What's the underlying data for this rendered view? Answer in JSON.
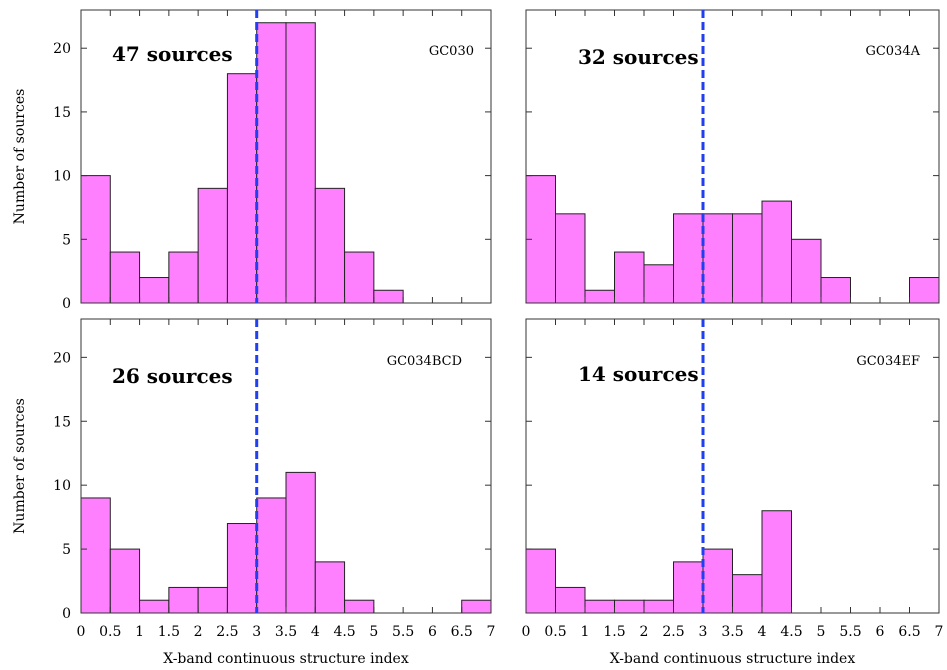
{
  "chart_data": [
    {
      "type": "bar",
      "panel": "GC030",
      "annotation": "47 sources",
      "bin_edges": [
        0,
        0.5,
        1,
        1.5,
        2,
        2.5,
        3,
        3.5,
        4,
        4.5,
        5,
        5.5,
        6,
        6.5,
        7
      ],
      "values": [
        10,
        4,
        2,
        4,
        9,
        18,
        22,
        22,
        9,
        4,
        1,
        0,
        0,
        0
      ],
      "ylabel": "Number of sources",
      "xlabel": "",
      "xlim": [
        0,
        7
      ],
      "ylim": [
        0,
        23
      ],
      "threshold": 3
    },
    {
      "type": "bar",
      "panel": "GC034A",
      "annotation": "32 sources",
      "bin_edges": [
        0,
        0.5,
        1,
        1.5,
        2,
        2.5,
        3,
        3.5,
        4,
        4.5,
        5,
        5.5,
        6,
        6.5,
        7
      ],
      "values": [
        10,
        7,
        1,
        4,
        3,
        7,
        7,
        7,
        8,
        5,
        2,
        0,
        0,
        2
      ],
      "ylabel": "",
      "xlabel": "",
      "xlim": [
        0,
        7
      ],
      "ylim": [
        0,
        23
      ],
      "threshold": 3
    },
    {
      "type": "bar",
      "panel": "GC034BCD",
      "annotation": "26 sources",
      "bin_edges": [
        0,
        0.5,
        1,
        1.5,
        2,
        2.5,
        3,
        3.5,
        4,
        4.5,
        5,
        5.5,
        6,
        6.5,
        7
      ],
      "values": [
        9,
        5,
        1,
        2,
        2,
        7,
        9,
        11,
        4,
        1,
        0,
        0,
        0,
        1
      ],
      "ylabel": "Number of sources",
      "xlabel": "X-band continuous structure index",
      "xlim": [
        0,
        7
      ],
      "ylim": [
        0,
        23
      ],
      "threshold": 3
    },
    {
      "type": "bar",
      "panel": "GC034EF",
      "annotation": "14 sources",
      "bin_edges": [
        0,
        0.5,
        1,
        1.5,
        2,
        2.5,
        3,
        3.5,
        4,
        4.5,
        5,
        5.5,
        6,
        6.5,
        7
      ],
      "values": [
        5,
        2,
        1,
        1,
        1,
        4,
        5,
        3,
        8,
        0,
        0,
        0,
        0,
        0
      ],
      "ylabel": "",
      "xlabel": "X-band continuous structure index",
      "xlim": [
        0,
        7
      ],
      "ylim": [
        0,
        23
      ],
      "threshold": 3
    }
  ],
  "axes": {
    "y_ticks": [
      0,
      5,
      10,
      15,
      20
    ],
    "x_ticks": [
      0,
      0.5,
      1,
      1.5,
      2,
      2.5,
      3,
      3.5,
      4,
      4.5,
      5,
      5.5,
      6,
      6.5,
      7
    ],
    "x_tick_labels": [
      "0",
      "0.5",
      "1",
      "1.5",
      "2",
      "2.5",
      "3",
      "3.5",
      "4",
      "4.5",
      "5",
      "5.5",
      "6",
      "6.5",
      "7"
    ]
  },
  "colors": {
    "bar_fill": "#ff80ff",
    "threshold_line": "#1f3ff0"
  }
}
